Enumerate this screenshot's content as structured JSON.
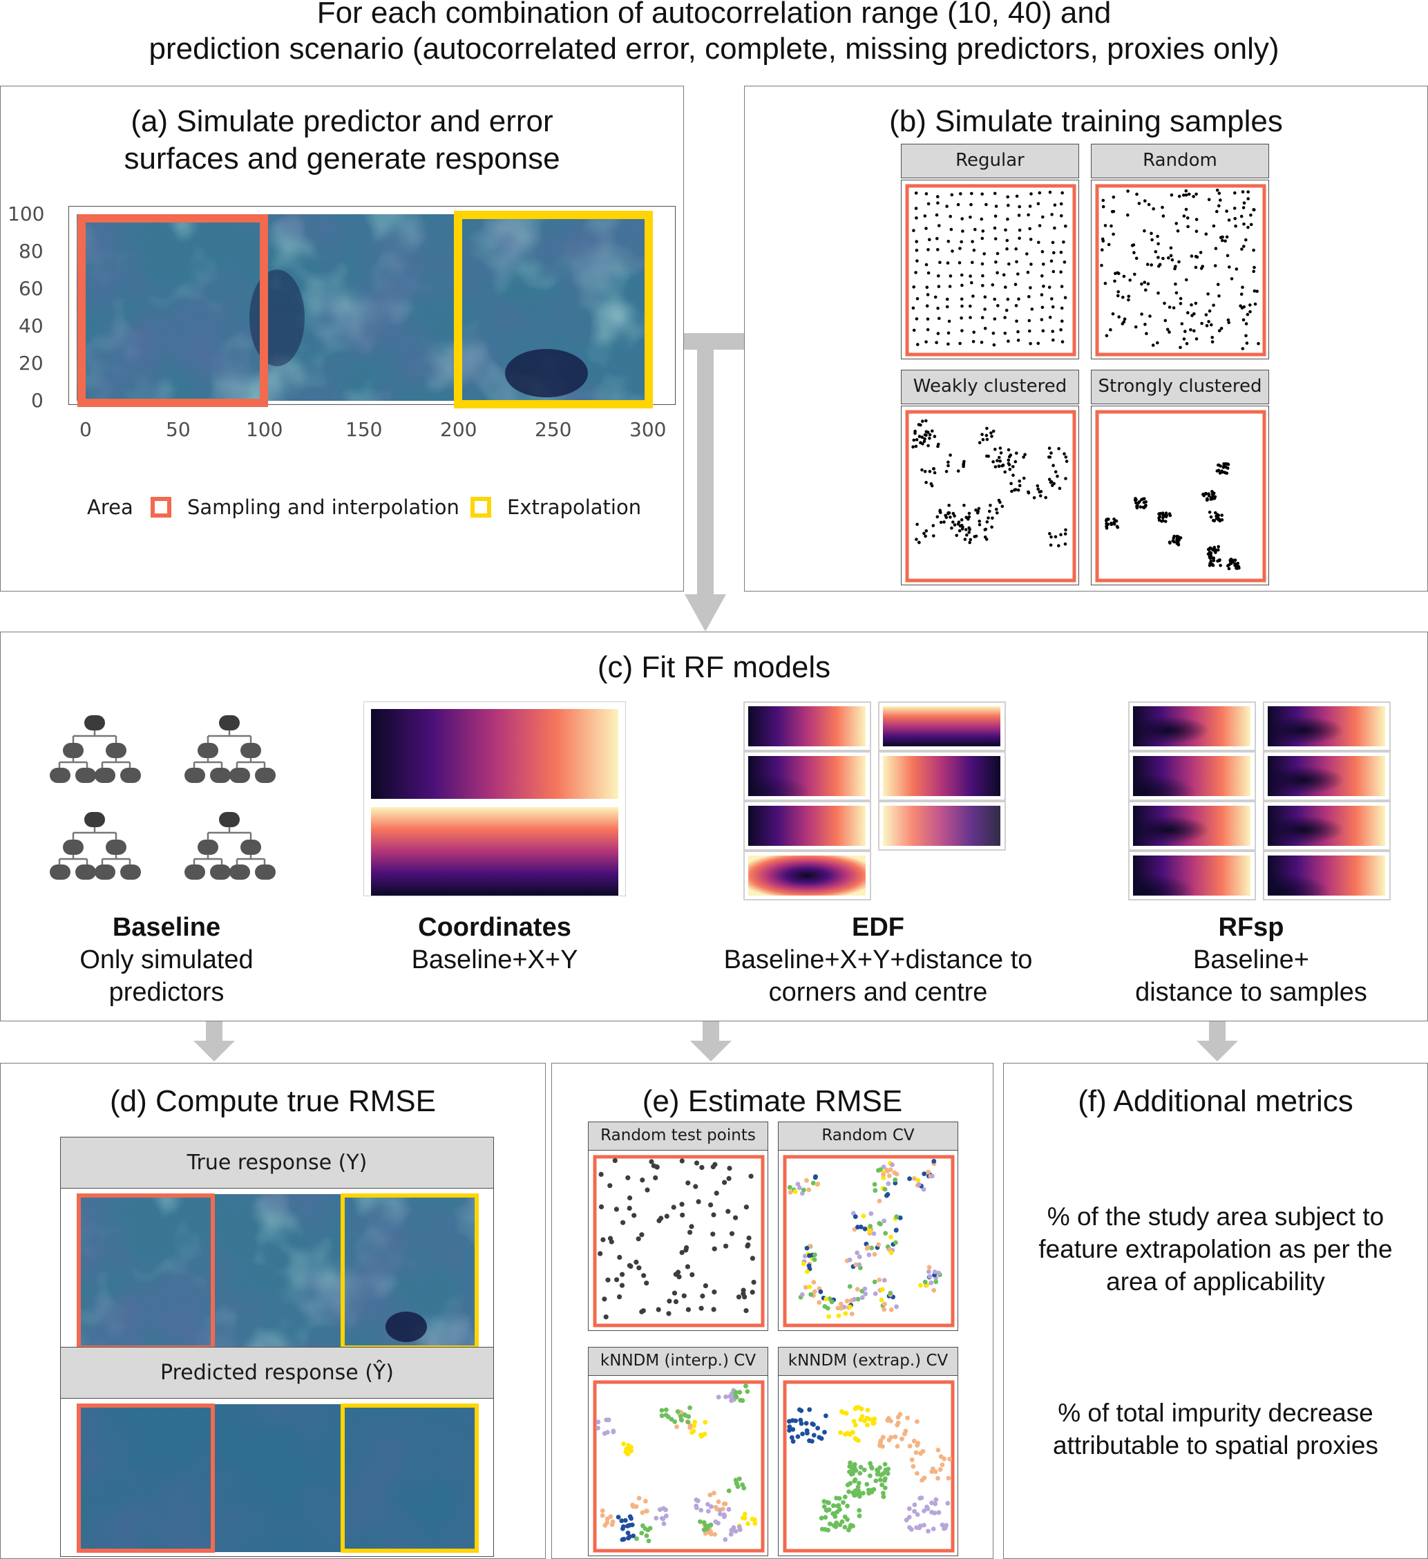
{
  "header": {
    "line1": "For each combination of autocorrelation range (10, 40) and",
    "line2": "prediction scenario (autocorrelated error, complete, missing predictors, proxies only)"
  },
  "colors": {
    "sampling_area": "#f26a4f",
    "extrapolation_area": "#ffd400",
    "arrow": "#c4c4c4",
    "strip_bg": "#d9d9d9",
    "cv_fold_colors": [
      "#1f4e9c",
      "#ffe600",
      "#6cbf5b",
      "#b7a6d9",
      "#f5b383"
    ]
  },
  "panel_a": {
    "title_line1": "(a) Simulate predictor and error",
    "title_line2": "surfaces and generate response",
    "y_ticks": [
      "100",
      "80",
      "60",
      "40",
      "20",
      "0"
    ],
    "x_ticks": [
      "0",
      "50",
      "100",
      "150",
      "200",
      "250",
      "300"
    ],
    "legend_title": "Area",
    "legend_items": [
      "Sampling and interpolation",
      "Extrapolation"
    ]
  },
  "panel_b": {
    "title": "(b) Simulate training samples",
    "facets": [
      "Regular",
      "Random",
      "Weakly clustered",
      "Strongly clustered"
    ]
  },
  "panel_c": {
    "title": "(c) Fit RF models",
    "models": [
      {
        "name": "Baseline",
        "line1": "Only simulated",
        "line2": "predictors"
      },
      {
        "name": "Coordinates",
        "line1": "Baseline+X+Y",
        "line2": ""
      },
      {
        "name": "EDF",
        "line1": "Baseline+X+Y+distance to",
        "line2": "corners and centre"
      },
      {
        "name": "RFsp",
        "line1": "Baseline+",
        "line2": "distance to samples"
      }
    ]
  },
  "panel_d": {
    "title": "(d) Compute true RMSE",
    "facets": [
      "True response (Y)",
      "Predicted response (Ŷ)"
    ]
  },
  "panel_e": {
    "title": "(e) Estimate RMSE",
    "facets": [
      "Random test points",
      "Random CV",
      "kNNDM (interp.) CV",
      "kNNDM (extrap.) CV"
    ]
  },
  "panel_f": {
    "title": "(f) Additional metrics",
    "metric1": [
      "% of the study area subject to",
      "feature extrapolation as per the",
      "area of applicability"
    ],
    "metric2": [
      "% of total impurity decrease",
      "attributable to spatial proxies"
    ]
  }
}
